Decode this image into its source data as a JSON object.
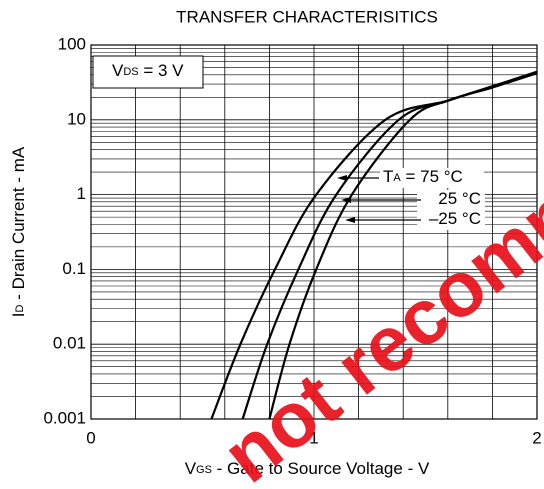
{
  "chart_data": {
    "type": "line",
    "title": "TRANSFER CHARACTERISITICS",
    "xlabel": {
      "main": "V",
      "sub": "GS",
      "rest": " - Gate to Source Voltage - V"
    },
    "ylabel": {
      "main": "I",
      "sub": "D",
      "rest": " - Drain Current - mA"
    },
    "condition": {
      "main": "V",
      "sub": "DS",
      "rest": " = 3 V"
    },
    "watermark": "not recommended for new design",
    "xlim": [
      0,
      2
    ],
    "xticks": [
      0,
      1,
      2
    ],
    "xminor": [
      0.2,
      0.4,
      0.6,
      0.8,
      1.2,
      1.4,
      1.6,
      1.8
    ],
    "ylim": [
      0.001,
      100
    ],
    "yticks": [
      100,
      10,
      1,
      0.1,
      0.01,
      0.001
    ],
    "log_y": true,
    "grid": true,
    "minor_grid": true,
    "color": "#000000",
    "series": [
      {
        "name": {
          "pre": "T",
          "sub": "A",
          "rest": " = 75 °C"
        },
        "x": [
          0.54,
          0.67,
          0.825,
          1.01,
          1.32,
          1.6,
          1.8,
          2.0
        ],
        "values": [
          0.001,
          0.01,
          0.1,
          1,
          10,
          18,
          28,
          44
        ]
      },
      {
        "name": {
          "pre": "",
          "sub": "",
          "rest": "25 °C"
        },
        "x": [
          0.68,
          0.79,
          0.93,
          1.1,
          1.38,
          1.6,
          1.8,
          2.0
        ],
        "values": [
          0.001,
          0.01,
          0.1,
          1,
          10,
          18,
          28,
          43
        ]
      },
      {
        "name": {
          "pre": "",
          "sub": "",
          "rest": "–25 °C"
        },
        "x": [
          0.8,
          0.89,
          1.01,
          1.17,
          1.43,
          1.6,
          1.8,
          2.0
        ],
        "values": [
          0.001,
          0.01,
          0.1,
          1,
          10,
          18,
          27,
          42
        ]
      }
    ]
  }
}
